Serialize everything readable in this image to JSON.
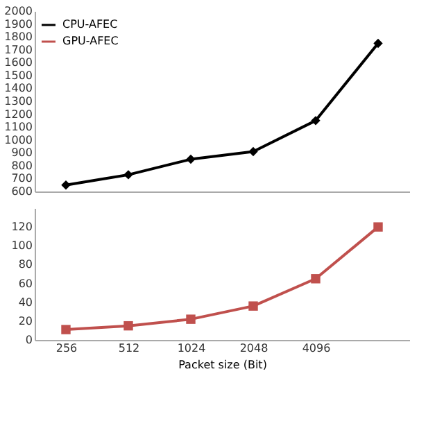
{
  "chart_data": [
    {
      "type": "line",
      "categories": [
        "256",
        "512",
        "1024",
        "2048",
        "4096",
        null
      ],
      "ylim": [
        600,
        2000
      ],
      "yticks": [
        600,
        700,
        800,
        900,
        1000,
        1100,
        1200,
        1300,
        1400,
        1500,
        1600,
        1700,
        1800,
        1900,
        2000
      ],
      "tick_labels": "y",
      "grid": false,
      "legend": "top left",
      "marker": "diamond",
      "line_style": "solid",
      "series": [
        {
          "name": "CPU-AFEC",
          "color": "#000000",
          "values": [
            650,
            730,
            850,
            910,
            1150,
            1750
          ]
        }
      ]
    },
    {
      "type": "line",
      "categories": [
        "256",
        "512",
        "1024",
        "2048",
        "4096",
        null
      ],
      "xlabel": "Packet size (Bit)",
      "ylim": [
        0,
        140
      ],
      "yticks": [
        0,
        20,
        40,
        60,
        80,
        100,
        120
      ],
      "grid": false,
      "legend": "top left",
      "marker": "square",
      "line_style": "solid",
      "series": [
        {
          "name": "GPU-AFEC",
          "color": "#c0504d",
          "values": [
            11,
            15,
            22,
            36,
            65,
            120
          ]
        }
      ]
    }
  ]
}
